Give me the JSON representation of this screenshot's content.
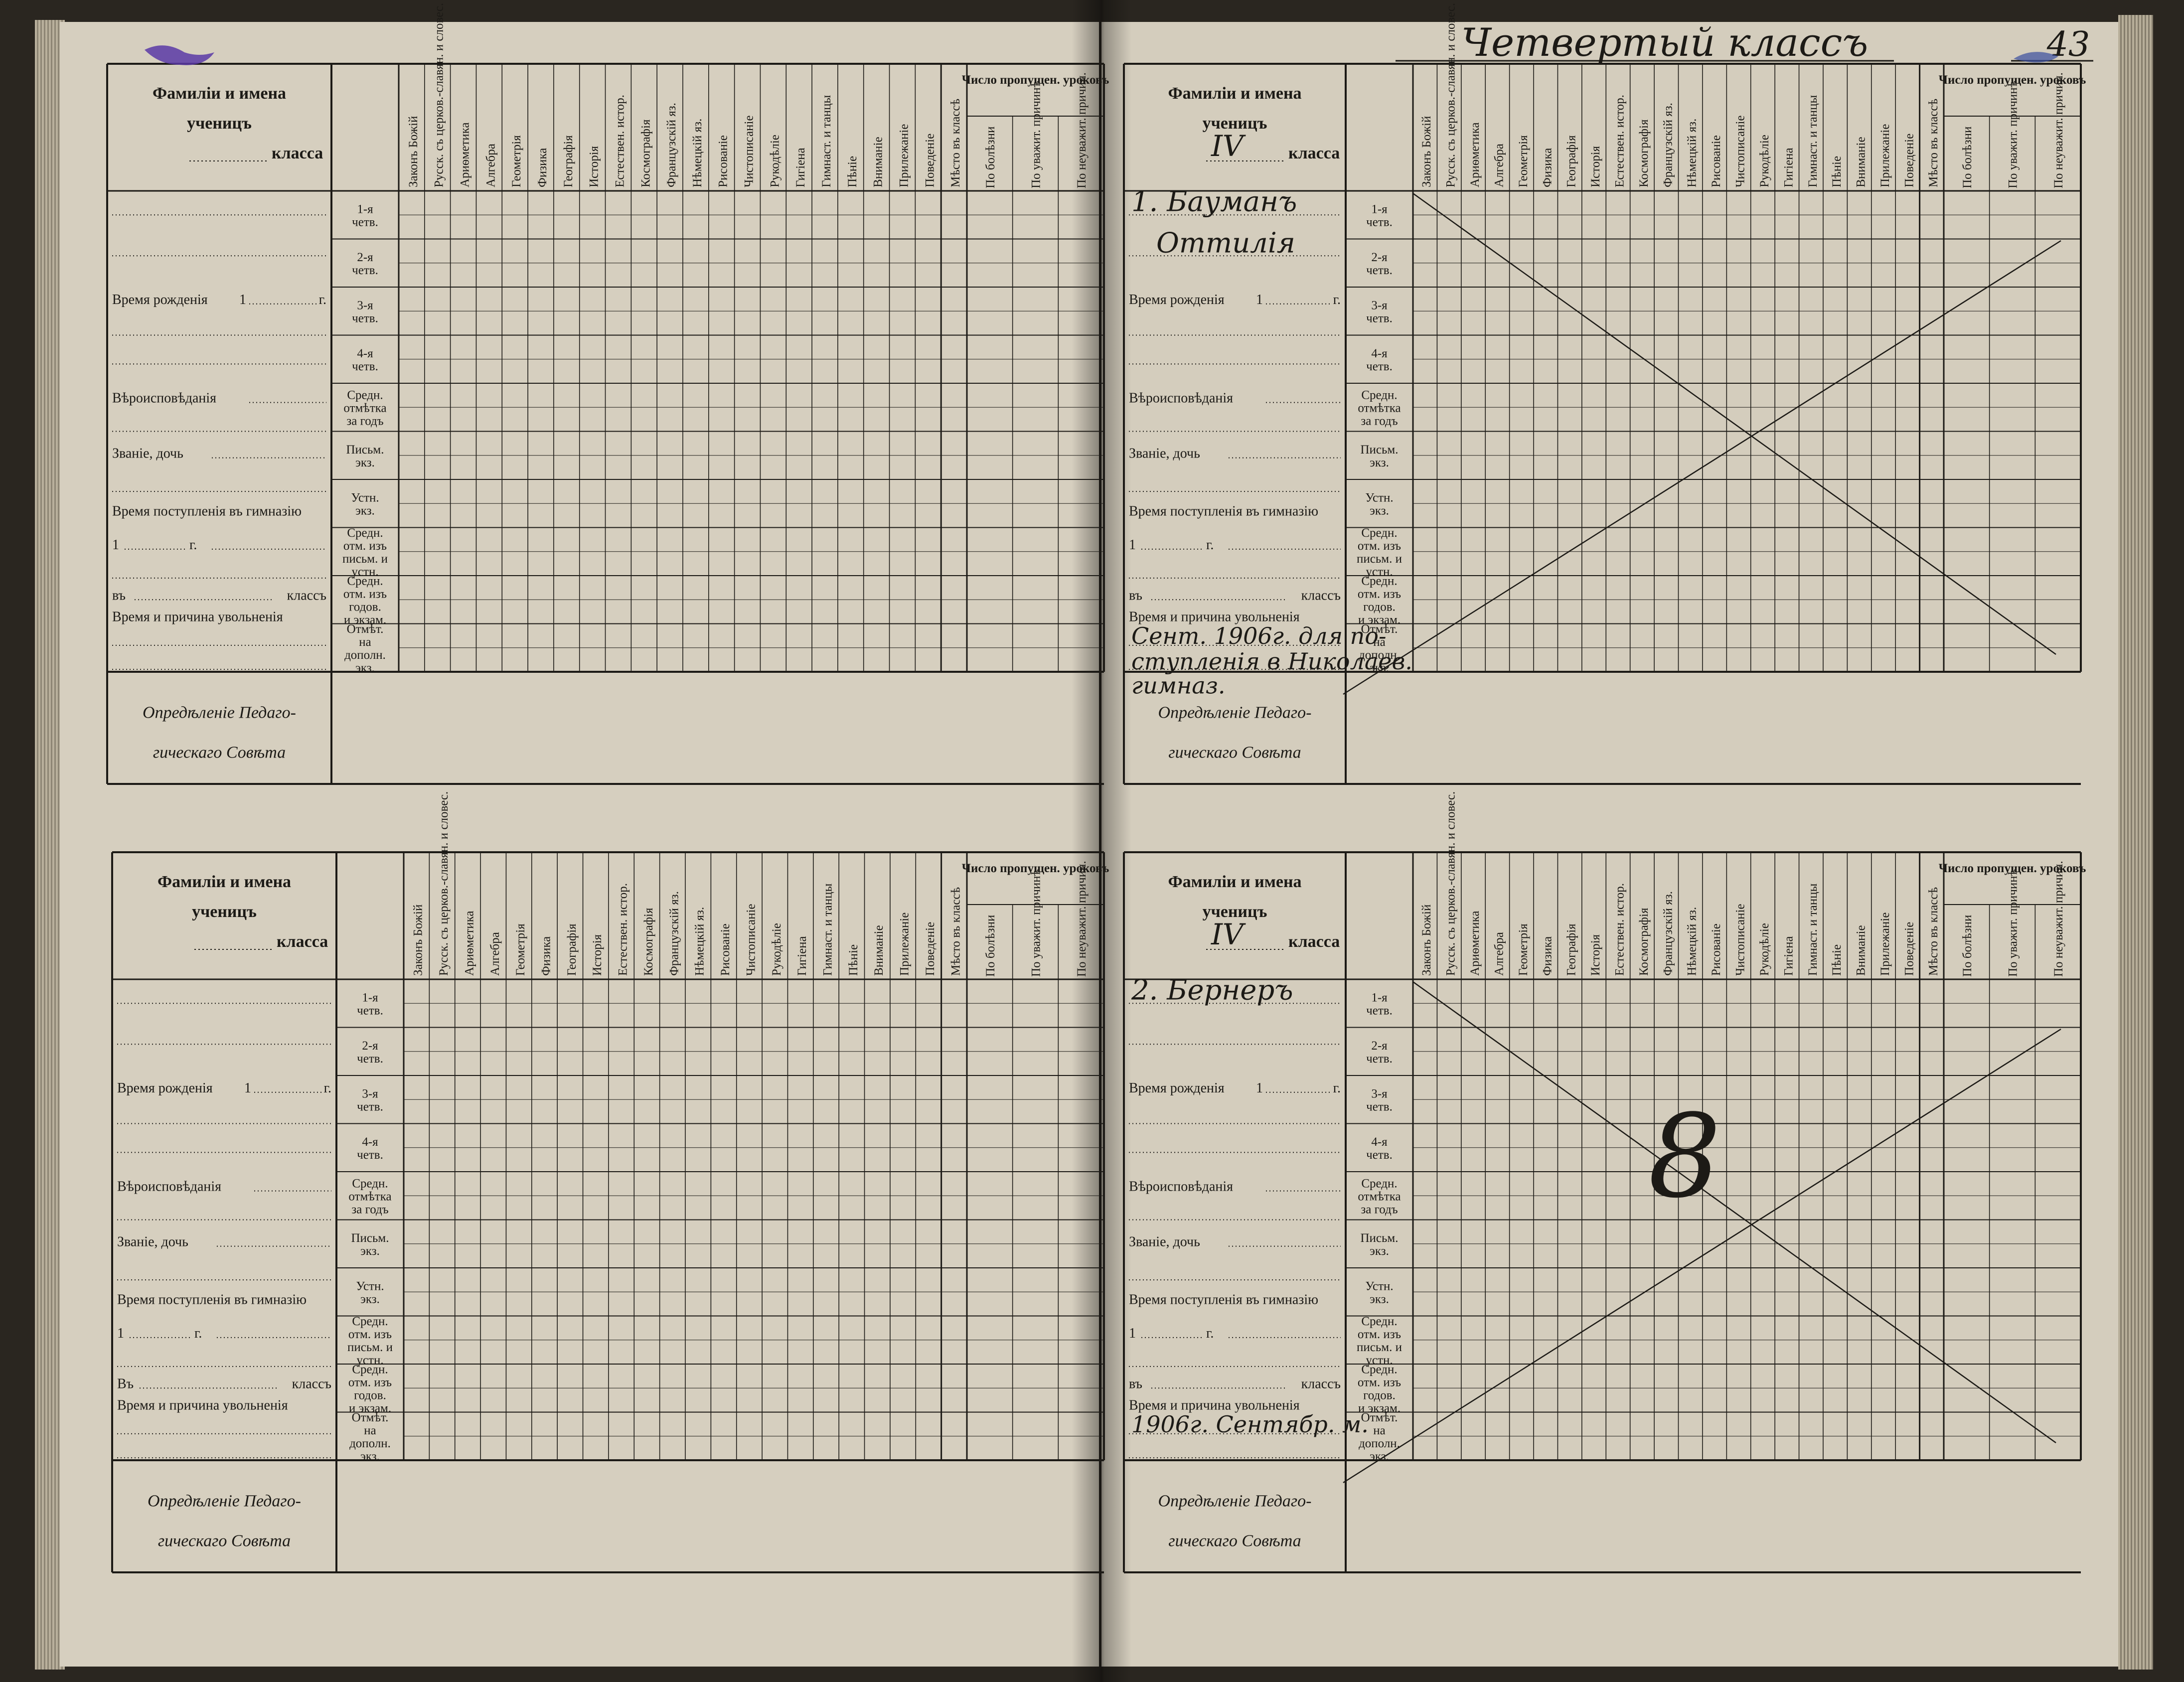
{
  "page_header": {
    "title": "Четвертый классъ",
    "page_number": "43"
  },
  "column_headers": [
    "Законъ Божій",
    "Русск. съ церков.-славян. и словес.",
    "Ариѳметика",
    "Алгебра",
    "Геометрія",
    "Физика",
    "Географія",
    "Исторія",
    "Естествен. истор.",
    "Космографія",
    "Французскій яз.",
    "Нѣмецкій яз.",
    "Рисованіе",
    "Чистописаніе",
    "Рукодѣліе",
    "Гигіена",
    "Гимнаст. и танцы",
    "Пѣніе",
    "Вниманіе",
    "Прилежаніе",
    "Поведеніе",
    "Мѣсто въ классѣ"
  ],
  "absence": {
    "title": "Число пропущен. уроковъ",
    "subs": [
      "По болѣзни",
      "По уважит. причинѣ",
      "По неуважит. причин."
    ]
  },
  "names_header": {
    "line1": "Фамиліи и имена",
    "line2": "ученицъ",
    "line3": "класса",
    "class_filled": "IV"
  },
  "row_labels": [
    {
      "a": "1-я",
      "b": "четв."
    },
    {
      "a": "2-я",
      "b": "четв."
    },
    {
      "a": "3-я",
      "b": "четв."
    },
    {
      "a": "4-я",
      "b": "четв."
    },
    {
      "a": "Средн.",
      "b": "отмѣтка",
      "c": "за годъ"
    },
    {
      "a": "Письм.",
      "b": "экз."
    },
    {
      "a": "Устн.",
      "b": "экз."
    },
    {
      "a": "Средн.",
      "b": "отм. изъ",
      "c": "письм. и",
      "d": "устн."
    },
    {
      "a": "Средн.",
      "b": "отм. изъ",
      "c": "годов.",
      "d": "и экзам."
    },
    {
      "a": "Отмѣт.",
      "b": "на",
      "c": "дополн.",
      "d": "экз."
    }
  ],
  "form_fields": {
    "birth": "Время рожденія",
    "birth_year_prefix": "1",
    "birth_year_suffix": "г.",
    "religion": "Вѣроисповѣданія",
    "rank": "Званіе, дочь",
    "admission": "Время поступленія въ гимназію",
    "admission_year_prefix": "1",
    "admission_year_suffix": "г.",
    "into_prefix": "въ",
    "into_prefix_cap": "Въ",
    "into_suffix": "классъ",
    "dismissal": "Время и причина увольненія"
  },
  "council": {
    "line1": "Опредѣленіе Педаго-",
    "line2": "гическаго Совѣта"
  },
  "students": [
    {
      "number_name": "1. Бауманъ",
      "first_name": "Оттилія",
      "dismissal_line1": "Сент. 1906г. для по-",
      "dismissal_line2": "ступленія в Николаев.",
      "dismissal_line3": "гимназ."
    },
    {
      "number_name": "2. Бернеръ",
      "dismissal_line1": "1906г. Сентябр. м.",
      "margin_mark": "8"
    }
  ]
}
